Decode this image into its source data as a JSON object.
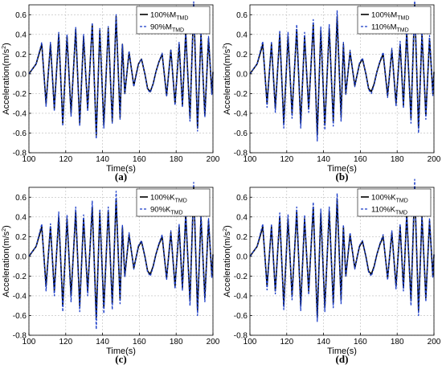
{
  "colors": {
    "solid": "#000000",
    "dashed": "#1a3cc8",
    "frame": "#000000",
    "grid": "#bbbbbb"
  },
  "chart_data": [
    {
      "type": "line",
      "panel_label": "(a)",
      "xlabel": "Time(s)",
      "ylabel_main": "Acceleration(m/s",
      "ylabel_sup": "2",
      "ylabel_close": ")",
      "xlim": [
        100,
        200
      ],
      "ylim": [
        -0.8,
        0.7
      ],
      "xticks": [
        "100",
        "120",
        "140",
        "160",
        "180",
        "200"
      ],
      "yticks": [
        "-0.8",
        "-0.6",
        "-0.4",
        "-0.2",
        "0.0",
        "0.2",
        "0.4",
        "0.6"
      ],
      "grid": true,
      "legend_position": "top-right",
      "series": [
        {
          "name_main": "100%M",
          "name_sub": "TMD",
          "style": "solid",
          "x": [
            100,
            103.9,
            107,
            109.3,
            111.7,
            113.8,
            116.2,
            118.4,
            120.7,
            122.9,
            125.4,
            127.6,
            129.7,
            131.9,
            134.4,
            136.6,
            138.5,
            140.7,
            143.1,
            145.3,
            147.4,
            149.5,
            150.8,
            152.1,
            154.4,
            157,
            159.5,
            161.2,
            163,
            164.5,
            166,
            167.5,
            169,
            170.6,
            172.4,
            174.8,
            177.1,
            179.4,
            181.6,
            183.4,
            185.2,
            187.5,
            189.5,
            191.6,
            193.5,
            195.6,
            197.6,
            199.4,
            200
          ],
          "values": [
            0,
            0.1,
            0.3,
            -0.3,
            0.3,
            -0.35,
            0.4,
            -0.5,
            0.38,
            -0.4,
            0.45,
            -0.5,
            0.38,
            -0.35,
            0.5,
            -0.62,
            0.44,
            -0.52,
            0.46,
            -0.48,
            0.58,
            -0.44,
            0.3,
            -0.2,
            0.22,
            -0.12,
            0.1,
            0.15,
            0,
            -0.15,
            -0.18,
            -0.1,
            0.02,
            0.12,
            0.2,
            -0.22,
            0.24,
            -0.3,
            0.3,
            -0.32,
            0.42,
            -0.45,
            0.7,
            -0.55,
            0.4,
            -0.42,
            0.36,
            -0.2,
            0.02
          ]
        },
        {
          "name_main": "90%M",
          "name_sub": "TMD",
          "style": "dashed",
          "x": [
            100,
            103.9,
            107,
            109.3,
            111.7,
            113.8,
            116.2,
            118.4,
            120.7,
            122.9,
            125.4,
            127.6,
            129.7,
            131.9,
            134.4,
            136.6,
            138.5,
            140.7,
            143.1,
            145.3,
            147.4,
            149.5,
            150.8,
            152.1,
            154.4,
            157,
            159.5,
            161.2,
            163,
            164.5,
            166,
            167.5,
            169,
            170.6,
            172.4,
            174.8,
            177.1,
            179.4,
            181.6,
            183.4,
            185.2,
            187.5,
            189.5,
            191.6,
            193.5,
            195.6,
            197.6,
            199.4,
            200
          ],
          "values": [
            0,
            0.1,
            0.32,
            -0.33,
            0.32,
            -0.38,
            0.42,
            -0.53,
            0.4,
            -0.43,
            0.47,
            -0.53,
            0.4,
            -0.38,
            0.52,
            -0.66,
            0.46,
            -0.55,
            0.48,
            -0.5,
            0.6,
            -0.46,
            0.3,
            -0.2,
            0.23,
            -0.13,
            0.1,
            0.15,
            0,
            -0.16,
            -0.19,
            -0.1,
            0.02,
            0.12,
            0.21,
            -0.23,
            0.25,
            -0.32,
            0.32,
            -0.34,
            0.44,
            -0.48,
            0.73,
            -0.58,
            0.42,
            -0.44,
            0.38,
            -0.21,
            0.02
          ]
        }
      ]
    },
    {
      "type": "line",
      "panel_label": "(b)",
      "xlabel": "Time(s)",
      "ylabel_main": "Acceleration(m/s",
      "ylabel_sup": "2",
      "ylabel_close": ")",
      "xlim": [
        100,
        200
      ],
      "ylim": [
        -0.8,
        0.7
      ],
      "xticks": [
        "100",
        "120",
        "140",
        "160",
        "180",
        "200"
      ],
      "yticks": [
        "-0.8",
        "-0.6",
        "-0.4",
        "-0.2",
        "0.0",
        "0.2",
        "0.4",
        "0.6"
      ],
      "grid": true,
      "legend_position": "top-right",
      "series": [
        {
          "name_main": "100%M",
          "name_sub": "TMD",
          "style": "solid",
          "x": [
            100,
            103.9,
            107,
            109.3,
            111.7,
            113.8,
            116.2,
            118.4,
            120.7,
            122.9,
            125.4,
            127.6,
            129.7,
            131.9,
            134.4,
            136.6,
            138.5,
            140.7,
            143.1,
            145.3,
            147.4,
            149.5,
            150.8,
            152.1,
            154.4,
            157,
            159.5,
            161.2,
            163,
            164.5,
            166,
            167.5,
            169,
            170.6,
            172.4,
            174.8,
            177.1,
            179.4,
            181.6,
            183.4,
            185.2,
            187.5,
            189.5,
            191.6,
            193.5,
            195.6,
            197.6,
            199.4,
            200
          ],
          "values": [
            0,
            0.1,
            0.3,
            -0.3,
            0.3,
            -0.35,
            0.4,
            -0.5,
            0.38,
            -0.4,
            0.45,
            -0.5,
            0.38,
            -0.35,
            0.5,
            -0.62,
            0.44,
            -0.52,
            0.46,
            -0.48,
            0.58,
            -0.44,
            0.3,
            -0.2,
            0.22,
            -0.12,
            0.1,
            0.15,
            0,
            -0.15,
            -0.18,
            -0.1,
            0.02,
            0.12,
            0.2,
            -0.22,
            0.24,
            -0.3,
            0.3,
            -0.32,
            0.42,
            -0.45,
            0.7,
            -0.55,
            0.4,
            -0.42,
            0.36,
            -0.2,
            0.02
          ]
        },
        {
          "name_main": "110%M",
          "name_sub": "TMD",
          "style": "dashed",
          "x": [
            100,
            103.9,
            107,
            109.3,
            111.7,
            113.8,
            116.2,
            118.4,
            120.7,
            122.9,
            125.4,
            127.6,
            129.7,
            131.9,
            134.4,
            136.6,
            138.5,
            140.7,
            143.1,
            145.3,
            147.4,
            149.5,
            150.8,
            152.1,
            154.4,
            157,
            159.5,
            161.2,
            163,
            164.5,
            166,
            167.5,
            169,
            170.6,
            172.4,
            174.8,
            177.1,
            179.4,
            181.6,
            183.4,
            185.2,
            187.5,
            189.5,
            191.6,
            193.5,
            195.6,
            197.6,
            199.4,
            200
          ],
          "values": [
            0,
            0.1,
            0.33,
            -0.34,
            0.33,
            -0.39,
            0.44,
            -0.55,
            0.42,
            -0.45,
            0.5,
            -0.55,
            0.42,
            -0.39,
            0.55,
            -0.68,
            0.48,
            -0.57,
            0.5,
            -0.53,
            0.64,
            -0.48,
            0.32,
            -0.21,
            0.24,
            -0.13,
            0.11,
            0.16,
            0,
            -0.16,
            -0.2,
            -0.11,
            0.02,
            0.13,
            0.22,
            -0.24,
            0.26,
            -0.33,
            0.33,
            -0.35,
            0.46,
            -0.5,
            0.76,
            -0.6,
            0.44,
            -0.46,
            0.39,
            -0.22,
            0.02
          ]
        }
      ]
    },
    {
      "type": "line",
      "panel_label": "(c)",
      "xlabel": "Time(s)",
      "ylabel_main": "Acceleration(m/s",
      "ylabel_sup": "2",
      "ylabel_close": ")",
      "xlim": [
        100,
        200
      ],
      "ylim": [
        -0.8,
        0.7
      ],
      "xticks": [
        "100",
        "120",
        "140",
        "160",
        "180",
        "200"
      ],
      "yticks": [
        "-0.8",
        "-0.6",
        "-0.4",
        "-0.2",
        "0.0",
        "0.2",
        "0.4",
        "0.6"
      ],
      "grid": true,
      "legend_position": "top-right",
      "series": [
        {
          "name_main": "100%K",
          "name_sub": "TMD",
          "style": "solid",
          "x": [
            100,
            103.9,
            107,
            109.3,
            111.7,
            113.8,
            116.2,
            118.4,
            120.7,
            122.9,
            125.4,
            127.6,
            129.7,
            131.9,
            134.4,
            136.6,
            138.5,
            140.7,
            143.1,
            145.3,
            147.4,
            149.5,
            150.8,
            152.1,
            154.4,
            157,
            159.5,
            161.2,
            163,
            164.5,
            166,
            167.5,
            169,
            170.6,
            172.4,
            174.8,
            177.1,
            179.4,
            181.6,
            183.4,
            185.2,
            187.5,
            189.5,
            191.6,
            193.5,
            195.6,
            197.6,
            199.4,
            200
          ],
          "values": [
            0,
            0.1,
            0.3,
            -0.3,
            0.3,
            -0.35,
            0.4,
            -0.5,
            0.38,
            -0.4,
            0.45,
            -0.5,
            0.38,
            -0.35,
            0.5,
            -0.62,
            0.44,
            -0.52,
            0.46,
            -0.48,
            0.58,
            -0.44,
            0.3,
            -0.2,
            0.22,
            -0.12,
            0.1,
            0.15,
            0,
            -0.15,
            -0.18,
            -0.1,
            0.02,
            0.12,
            0.2,
            -0.22,
            0.24,
            -0.3,
            0.3,
            -0.32,
            0.42,
            -0.45,
            0.7,
            -0.55,
            0.4,
            -0.42,
            0.36,
            -0.2,
            0.02
          ]
        },
        {
          "name_main": "90%K",
          "name_sub": "TMD",
          "style": "dashed",
          "x": [
            100,
            103.9,
            107,
            109.3,
            111.7,
            113.8,
            116.2,
            118.4,
            120.7,
            122.9,
            125.4,
            127.6,
            129.7,
            131.9,
            134.4,
            136.6,
            138.5,
            140.7,
            143.1,
            145.3,
            147.4,
            149.5,
            150.8,
            152.1,
            154.4,
            157,
            159.5,
            161.2,
            163,
            164.5,
            166,
            167.5,
            169,
            170.6,
            172.4,
            174.8,
            177.1,
            179.4,
            181.6,
            183.4,
            185.2,
            187.5,
            189.5,
            191.6,
            193.5,
            195.6,
            197.6,
            199.4,
            200
          ],
          "values": [
            0,
            0.1,
            0.33,
            -0.35,
            0.33,
            -0.4,
            0.45,
            -0.56,
            0.42,
            -0.46,
            0.5,
            -0.56,
            0.42,
            -0.4,
            0.56,
            -0.74,
            0.48,
            -0.58,
            0.5,
            -0.54,
            0.66,
            -0.48,
            0.32,
            -0.21,
            0.24,
            -0.13,
            0.11,
            0.16,
            0,
            -0.16,
            -0.2,
            -0.11,
            0.02,
            0.13,
            0.22,
            -0.24,
            0.26,
            -0.33,
            0.33,
            -0.35,
            0.47,
            -0.5,
            0.75,
            -0.6,
            0.44,
            -0.46,
            0.39,
            -0.22,
            0.02
          ]
        }
      ]
    },
    {
      "type": "line",
      "panel_label": "(d)",
      "xlabel": "Time(s)",
      "ylabel_main": "Acceleration(m/s",
      "ylabel_sup": "2",
      "ylabel_close": ")",
      "xlim": [
        100,
        200
      ],
      "ylim": [
        -0.8,
        0.7
      ],
      "xticks": [
        "100",
        "120",
        "140",
        "160",
        "180",
        "200"
      ],
      "yticks": [
        "-0.8",
        "-0.6",
        "-0.4",
        "-0.2",
        "0.0",
        "0.2",
        "0.4",
        "0.6"
      ],
      "grid": true,
      "legend_position": "top-right",
      "series": [
        {
          "name_main": "100%K",
          "name_sub": "TMD",
          "style": "solid",
          "x": [
            100,
            103.9,
            107,
            109.3,
            111.7,
            113.8,
            116.2,
            118.4,
            120.7,
            122.9,
            125.4,
            127.6,
            129.7,
            131.9,
            134.4,
            136.6,
            138.5,
            140.7,
            143.1,
            145.3,
            147.4,
            149.5,
            150.8,
            152.1,
            154.4,
            157,
            159.5,
            161.2,
            163,
            164.5,
            166,
            167.5,
            169,
            170.6,
            172.4,
            174.8,
            177.1,
            179.4,
            181.6,
            183.4,
            185.2,
            187.5,
            189.5,
            191.6,
            193.5,
            195.6,
            197.6,
            199.4,
            200
          ],
          "values": [
            0,
            0.1,
            0.3,
            -0.3,
            0.3,
            -0.35,
            0.4,
            -0.5,
            0.38,
            -0.4,
            0.45,
            -0.5,
            0.38,
            -0.35,
            0.5,
            -0.62,
            0.44,
            -0.52,
            0.46,
            -0.48,
            0.58,
            -0.44,
            0.3,
            -0.2,
            0.22,
            -0.12,
            0.1,
            0.15,
            0,
            -0.15,
            -0.18,
            -0.1,
            0.02,
            0.12,
            0.2,
            -0.22,
            0.24,
            -0.3,
            0.3,
            -0.32,
            0.42,
            -0.45,
            0.7,
            -0.55,
            0.4,
            -0.42,
            0.36,
            -0.2,
            0.02
          ]
        },
        {
          "name_main": "110%K",
          "name_sub": "TMD",
          "style": "dashed",
          "x": [
            100,
            103.9,
            107,
            109.3,
            111.7,
            113.8,
            116.2,
            118.4,
            120.7,
            122.9,
            125.4,
            127.6,
            129.7,
            131.9,
            134.4,
            136.6,
            138.5,
            140.7,
            143.1,
            145.3,
            147.4,
            149.5,
            150.8,
            152.1,
            154.4,
            157,
            159.5,
            161.2,
            163,
            164.5,
            166,
            167.5,
            169,
            170.6,
            172.4,
            174.8,
            177.1,
            179.4,
            181.6,
            183.4,
            185.2,
            187.5,
            189.5,
            191.6,
            193.5,
            195.6,
            197.6,
            199.4,
            200
          ],
          "values": [
            0,
            0.1,
            0.33,
            -0.34,
            0.33,
            -0.38,
            0.44,
            -0.54,
            0.42,
            -0.44,
            0.5,
            -0.55,
            0.42,
            -0.39,
            0.55,
            -0.66,
            0.48,
            -0.56,
            0.5,
            -0.52,
            0.64,
            -0.48,
            0.32,
            -0.21,
            0.24,
            -0.13,
            0.11,
            0.16,
            0,
            -0.16,
            -0.2,
            -0.11,
            0.02,
            0.13,
            0.22,
            -0.24,
            0.26,
            -0.33,
            0.33,
            -0.35,
            0.46,
            -0.5,
            0.78,
            -0.6,
            0.44,
            -0.46,
            0.39,
            -0.22,
            0.02
          ]
        }
      ]
    }
  ]
}
